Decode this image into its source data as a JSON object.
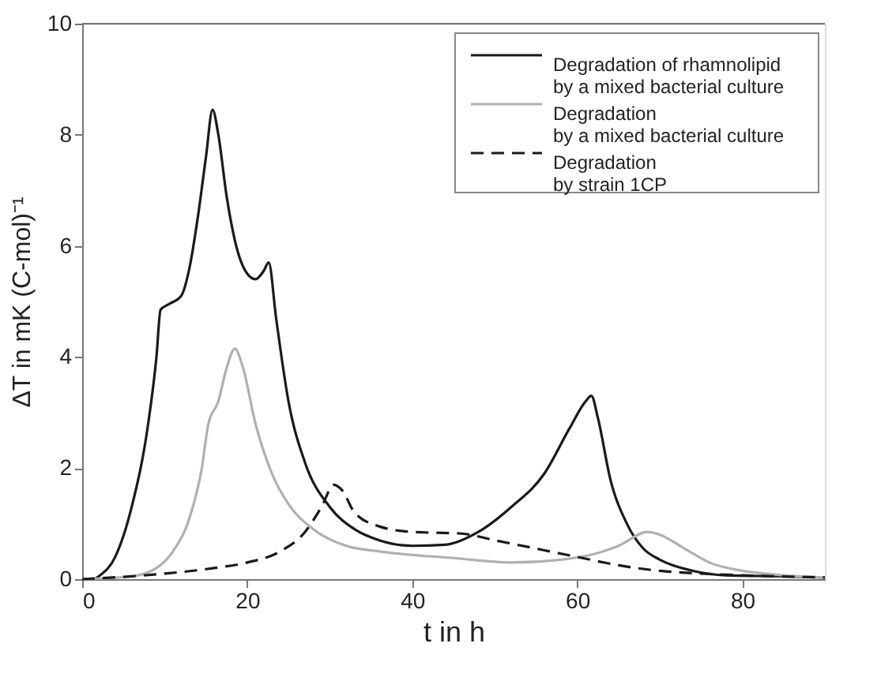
{
  "chart_data": {
    "type": "line",
    "xlabel": "t in h",
    "ylabel": "ΔT in mK (C-mol)⁻¹",
    "xlim": [
      0,
      90
    ],
    "xticks": [
      0,
      20,
      40,
      60,
      80
    ],
    "ylim": [
      0,
      10
    ],
    "yticks": [
      0,
      2,
      4,
      6,
      8,
      10
    ],
    "grid": false,
    "legend": "top right",
    "series": [
      {
        "name": "Degradation of rhamnolipid\nby a mixed bacterial culture",
        "color": "#1a1a1a",
        "line_style": "solid",
        "x": [
          1.5,
          2,
          4,
          6,
          8,
          9,
          9.5,
          10.5,
          12,
          13,
          14,
          15,
          15.8,
          16.5,
          17.5,
          18.5,
          20,
          21,
          22,
          22.6,
          23.5,
          25,
          27,
          30,
          33,
          36,
          40,
          44,
          48,
          52,
          56,
          59,
          61,
          61.7,
          62.5,
          64,
          66,
          68,
          70,
          74,
          78,
          85,
          90
        ],
        "values": [
          0,
          0.05,
          0.4,
          1.3,
          2.8,
          4.0,
          4.85,
          4.95,
          5.1,
          5.6,
          6.5,
          7.6,
          8.45,
          8.0,
          6.9,
          6.1,
          5.5,
          5.4,
          5.55,
          5.7,
          4.7,
          3.2,
          2.1,
          1.3,
          0.9,
          0.7,
          0.6,
          0.62,
          0.85,
          1.3,
          1.9,
          2.7,
          3.2,
          3.3,
          2.9,
          1.8,
          1.0,
          0.55,
          0.35,
          0.15,
          0.07,
          0.05,
          0.03
        ]
      },
      {
        "name": "Degradation\nby a mixed bacterial culture",
        "color": "#b0b0b0",
        "line_style": "solid",
        "x": [
          0,
          6,
          9,
          11,
          13,
          14.5,
          15.3,
          16.5,
          17.5,
          18.5,
          19.5,
          21,
          23,
          25,
          28,
          32,
          36,
          45,
          52,
          58,
          62,
          65,
          68.5,
          70,
          73,
          76,
          80,
          85,
          90
        ],
        "values": [
          0,
          0.05,
          0.2,
          0.5,
          1.1,
          2.0,
          2.8,
          3.2,
          3.8,
          4.15,
          3.8,
          2.8,
          1.9,
          1.35,
          0.9,
          0.6,
          0.5,
          0.38,
          0.3,
          0.35,
          0.45,
          0.6,
          0.85,
          0.8,
          0.55,
          0.3,
          0.15,
          0.07,
          0.03
        ]
      },
      {
        "name": "Degradation\nby strain 1CP",
        "color": "#1a1a1a",
        "line_style": "dashed",
        "x": [
          0,
          10,
          16,
          20,
          24,
          27,
          29,
          30.5,
          31.5,
          33,
          36,
          40,
          46,
          50,
          55,
          60,
          65,
          70,
          75,
          80,
          90
        ],
        "values": [
          0,
          0.1,
          0.2,
          0.3,
          0.5,
          0.85,
          1.3,
          1.7,
          1.6,
          1.2,
          0.95,
          0.85,
          0.82,
          0.7,
          0.55,
          0.4,
          0.25,
          0.15,
          0.1,
          0.07,
          0.03
        ]
      }
    ]
  }
}
